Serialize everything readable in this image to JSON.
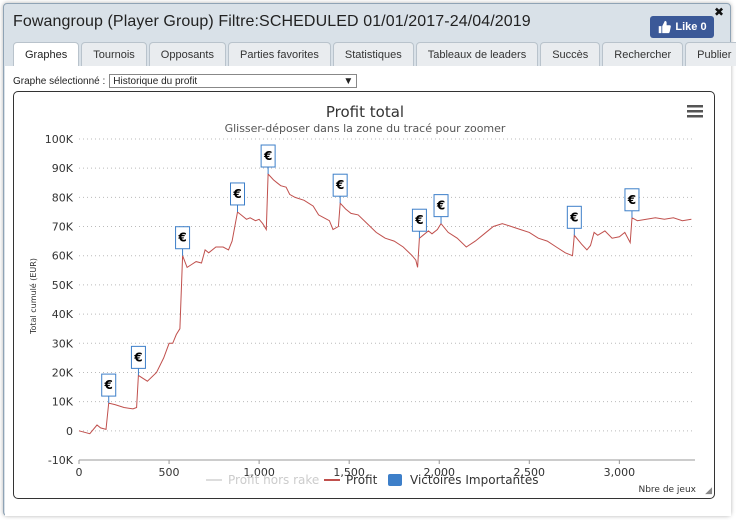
{
  "window": {
    "title": "Fowangroup (Player Group) Filtre:SCHEDULED 01/01/2017-24/04/2019",
    "like_label": "Like 0",
    "close_label": "✖"
  },
  "tabs": [
    {
      "label": "Graphes",
      "active": true
    },
    {
      "label": "Tournois"
    },
    {
      "label": "Opposants"
    },
    {
      "label": "Parties favorites"
    },
    {
      "label": "Statistiques"
    },
    {
      "label": "Tableaux de leaders"
    },
    {
      "label": "Succès"
    },
    {
      "label": "Rechercher"
    },
    {
      "label": "Publier"
    }
  ],
  "graph_select": {
    "label": "Graphe sélectionné :",
    "value": "Historique du profit"
  },
  "chart_data": {
    "type": "line",
    "title": "Profit total",
    "subtitle": "Glisser-déposer dans la zone du tracé pour zoomer",
    "ylabel": "Total cumulé (EUR)",
    "xlabel": "Nbre de jeux",
    "xlim": [
      0,
      3420
    ],
    "ylim": [
      -10000,
      100000
    ],
    "x_ticks": [
      0,
      500,
      1000,
      1500,
      2000,
      2500,
      3000
    ],
    "x_tick_labels": [
      "0",
      "500",
      "1,000",
      "1,500",
      "2,000",
      "2,500",
      "3,000"
    ],
    "y_ticks": [
      -10000,
      0,
      10000,
      20000,
      30000,
      40000,
      50000,
      60000,
      70000,
      80000,
      90000,
      100000
    ],
    "y_tick_labels": [
      "-10K",
      "0",
      "10K",
      "20K",
      "30K",
      "40K",
      "50K",
      "60K",
      "70K",
      "80K",
      "90K",
      "100K"
    ],
    "grid": true,
    "legend_position": "bottom",
    "series": [
      {
        "name": "Profit hors rake",
        "color": "#dddddd",
        "visible": false,
        "values": []
      },
      {
        "name": "Profit",
        "color": "#c0504d",
        "points": [
          [
            0,
            0
          ],
          [
            60,
            -1000
          ],
          [
            100,
            2000
          ],
          [
            120,
            1000
          ],
          [
            150,
            500
          ],
          [
            165,
            9500
          ],
          [
            200,
            9000
          ],
          [
            250,
            8000
          ],
          [
            300,
            7500
          ],
          [
            320,
            8000
          ],
          [
            330,
            19000
          ],
          [
            380,
            17000
          ],
          [
            430,
            20000
          ],
          [
            470,
            25000
          ],
          [
            500,
            30000
          ],
          [
            520,
            30000
          ],
          [
            540,
            33000
          ],
          [
            560,
            35000
          ],
          [
            575,
            60000
          ],
          [
            600,
            56000
          ],
          [
            625,
            57000
          ],
          [
            650,
            58000
          ],
          [
            680,
            57500
          ],
          [
            700,
            62000
          ],
          [
            720,
            61000
          ],
          [
            760,
            63000
          ],
          [
            800,
            63000
          ],
          [
            830,
            62000
          ],
          [
            850,
            65000
          ],
          [
            880,
            75000
          ],
          [
            900,
            74000
          ],
          [
            930,
            72500
          ],
          [
            950,
            73000
          ],
          [
            980,
            72000
          ],
          [
            1000,
            72500
          ],
          [
            1020,
            71000
          ],
          [
            1040,
            69000
          ],
          [
            1050,
            88000
          ],
          [
            1080,
            86000
          ],
          [
            1100,
            85000
          ],
          [
            1120,
            84000
          ],
          [
            1150,
            83500
          ],
          [
            1170,
            81000
          ],
          [
            1200,
            80000
          ],
          [
            1250,
            79000
          ],
          [
            1300,
            77000
          ],
          [
            1330,
            74000
          ],
          [
            1360,
            73000
          ],
          [
            1390,
            72000
          ],
          [
            1410,
            69000
          ],
          [
            1440,
            70000
          ],
          [
            1450,
            78000
          ],
          [
            1480,
            76000
          ],
          [
            1510,
            74500
          ],
          [
            1550,
            74000
          ],
          [
            1600,
            71000
          ],
          [
            1650,
            68000
          ],
          [
            1700,
            66000
          ],
          [
            1750,
            65000
          ],
          [
            1800,
            63000
          ],
          [
            1850,
            60000
          ],
          [
            1870,
            58500
          ],
          [
            1880,
            56000
          ],
          [
            1890,
            66000
          ],
          [
            1910,
            67000
          ],
          [
            1940,
            68500
          ],
          [
            1960,
            67500
          ],
          [
            1990,
            69000
          ],
          [
            2010,
            71000
          ],
          [
            2050,
            68000
          ],
          [
            2100,
            66000
          ],
          [
            2150,
            63000
          ],
          [
            2200,
            65000
          ],
          [
            2250,
            67500
          ],
          [
            2300,
            70000
          ],
          [
            2350,
            71000
          ],
          [
            2400,
            70000
          ],
          [
            2450,
            69000
          ],
          [
            2500,
            68000
          ],
          [
            2550,
            66000
          ],
          [
            2600,
            65000
          ],
          [
            2650,
            63000
          ],
          [
            2700,
            61000
          ],
          [
            2740,
            60000
          ],
          [
            2750,
            67000
          ],
          [
            2790,
            64000
          ],
          [
            2820,
            62000
          ],
          [
            2840,
            63500
          ],
          [
            2860,
            68000
          ],
          [
            2880,
            67000
          ],
          [
            2920,
            68500
          ],
          [
            2960,
            66000
          ],
          [
            3000,
            66500
          ],
          [
            3030,
            68000
          ],
          [
            3060,
            64500
          ],
          [
            3070,
            73000
          ],
          [
            3100,
            72000
          ],
          [
            3150,
            72500
          ],
          [
            3200,
            73000
          ],
          [
            3250,
            72500
          ],
          [
            3300,
            73000
          ],
          [
            3350,
            72000
          ],
          [
            3400,
            72500
          ]
        ]
      },
      {
        "name": "Victoires Importantes",
        "color": "#3d7fc9",
        "marker": "€",
        "points": [
          [
            165,
            9500
          ],
          [
            330,
            19000
          ],
          [
            575,
            60000
          ],
          [
            880,
            75000
          ],
          [
            1050,
            88000
          ],
          [
            1450,
            78000
          ],
          [
            1890,
            66000
          ],
          [
            2010,
            71000
          ],
          [
            2750,
            67000
          ],
          [
            3070,
            73000
          ]
        ]
      }
    ]
  }
}
